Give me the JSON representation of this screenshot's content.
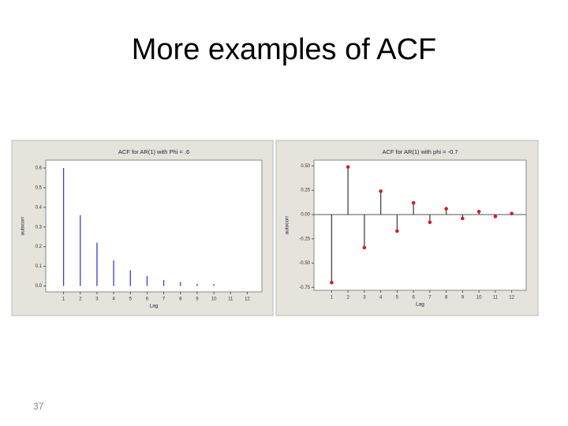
{
  "title": "More examples of ACF",
  "slide_number": "37",
  "chart_data": [
    {
      "type": "stem",
      "title": "ACF for AR(1) with Phi = .6",
      "x_label": "Lag",
      "y_label": "autocorr",
      "categories": [
        "1",
        "2",
        "3",
        "4",
        "5",
        "6",
        "7",
        "8",
        "9",
        "10",
        "11",
        "12"
      ],
      "values": [
        0.6,
        0.36,
        0.22,
        0.13,
        0.08,
        0.05,
        0.03,
        0.02,
        0.01,
        0.01,
        0.0,
        0.0
      ],
      "color": "#3c3ccc",
      "ylim": [
        -0.03,
        0.64
      ],
      "yticks": [
        {
          "value": 0,
          "label": "0.0"
        },
        {
          "value": 0.1,
          "label": "0.1"
        },
        {
          "value": 0.2,
          "label": "0.2"
        },
        {
          "value": 0.3,
          "label": "0.3"
        },
        {
          "value": 0.4,
          "label": "0.4"
        },
        {
          "value": 0.5,
          "label": "0.5"
        },
        {
          "value": 0.6,
          "label": "0.6"
        }
      ]
    },
    {
      "type": "stem",
      "title": "ACF for AR(1) with phi = -0.7",
      "x_label": "Lag",
      "y_label": "autocorr",
      "categories": [
        "1",
        "2",
        "3",
        "4",
        "5",
        "6",
        "7",
        "8",
        "9",
        "10",
        "11",
        "12"
      ],
      "values": [
        -0.7,
        0.49,
        -0.34,
        0.24,
        -0.17,
        0.12,
        -0.08,
        0.06,
        -0.04,
        0.03,
        -0.02,
        0.01
      ],
      "color": "#444444",
      "marker_color": "#cc1f2a",
      "ylim": [
        -0.78,
        0.56
      ],
      "yticks": [
        {
          "value": -0.75,
          "label": "-0.75"
        },
        {
          "value": -0.5,
          "label": "-0.50"
        },
        {
          "value": -0.25,
          "label": "-0.25"
        },
        {
          "value": 0,
          "label": "0.00"
        },
        {
          "value": 0.25,
          "label": "0.25"
        },
        {
          "value": 0.5,
          "label": "0.50"
        }
      ]
    }
  ]
}
